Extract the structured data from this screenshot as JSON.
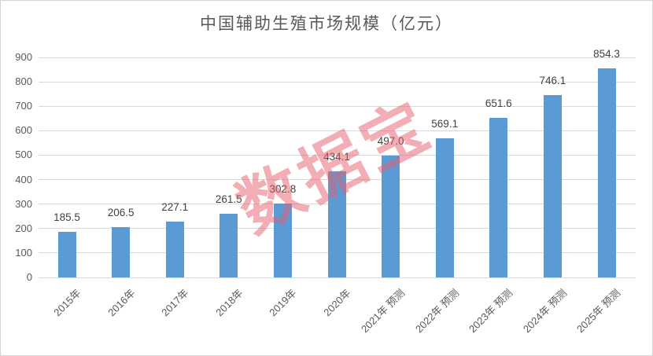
{
  "title": "中国辅助生殖市场规模（亿元）",
  "watermark": {
    "text": "数据宝",
    "color": "#E85D6D",
    "opacity": 0.5
  },
  "chart_data": {
    "type": "bar",
    "title": "中国辅助生殖市场规模（亿元）",
    "categories": [
      "2015年",
      "2016年",
      "2017年",
      "2018年",
      "2019年",
      "2020年",
      "2021年 预测",
      "2022年 预测",
      "2023年 预测",
      "2024年 预测",
      "2025年 预测"
    ],
    "values": [
      185.5,
      206.5,
      227.1,
      261.5,
      302.8,
      434.1,
      497.0,
      569.1,
      651.6,
      746.1,
      854.3
    ],
    "xlabel": "",
    "ylabel": "",
    "ylim": [
      0,
      900
    ],
    "ytick_step": 100,
    "grid": true,
    "legend": "none",
    "bar_color": "#5B9BD5",
    "value_label_color": "#404040",
    "axis_label_color": "#595959",
    "gridline_color": "#D9D9D9"
  }
}
